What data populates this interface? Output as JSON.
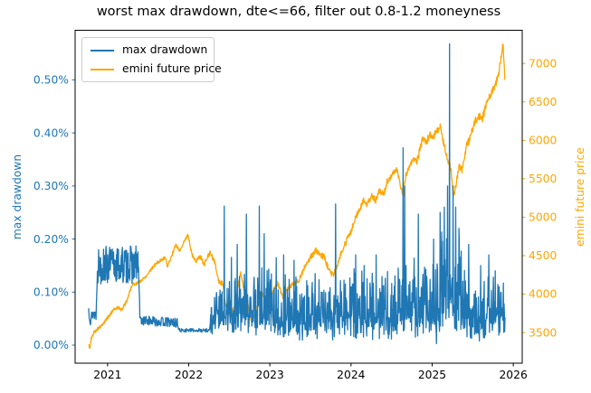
{
  "chart_data": {
    "type": "line",
    "title": "worst max drawdown, dte<=66, filter out 0.8-1.2 moneyness",
    "grid": false,
    "legend": {
      "position": "upper-left",
      "entries": [
        {
          "label": "max drawdown",
          "color": "#1f77b4"
        },
        {
          "label": "emini future price",
          "color": "#ffa500"
        }
      ]
    },
    "x_axis": {
      "lim": [
        2020.6,
        2026.11
      ],
      "tick_color": "#000000",
      "ticks": [
        {
          "v": 2021,
          "label": "2021"
        },
        {
          "v": 2022,
          "label": "2022"
        },
        {
          "v": 2023,
          "label": "2023"
        },
        {
          "v": 2024,
          "label": "2024"
        },
        {
          "v": 2025,
          "label": "2025"
        },
        {
          "v": 2026,
          "label": "2026"
        }
      ]
    },
    "y_left": {
      "label": "max drawdown",
      "color": "#1f77b4",
      "lim": [
        -0.034,
        0.5935
      ],
      "ticks": [
        {
          "v": 0.0,
          "label": "0.00%"
        },
        {
          "v": 0.1,
          "label": "0.10%"
        },
        {
          "v": 0.2,
          "label": "0.20%"
        },
        {
          "v": 0.3,
          "label": "0.30%"
        },
        {
          "v": 0.4,
          "label": "0.40%"
        },
        {
          "v": 0.5,
          "label": "0.50%"
        }
      ]
    },
    "y_right": {
      "label": "emini future price",
      "color": "#ffa500",
      "lim": [
        3101,
        7432
      ],
      "ticks": [
        {
          "v": 3500,
          "label": "3500"
        },
        {
          "v": 4000,
          "label": "4000"
        },
        {
          "v": 4500,
          "label": "4500"
        },
        {
          "v": 5000,
          "label": "5000"
        },
        {
          "v": 5500,
          "label": "5500"
        },
        {
          "v": 6000,
          "label": "6000"
        },
        {
          "v": 6500,
          "label": "6500"
        },
        {
          "v": 7000,
          "label": "7000"
        }
      ]
    },
    "sample_step": 0.004,
    "series": [
      {
        "name": "emini future price",
        "slug": "emini-future-price",
        "color": "#ffa500",
        "axis": "right",
        "seed": 5,
        "keypoints": [
          [
            2020.768,
            3340
          ],
          [
            2020.78,
            3290
          ],
          [
            2020.8,
            3420
          ],
          [
            2020.83,
            3500
          ],
          [
            2020.87,
            3540
          ],
          [
            2020.92,
            3580
          ],
          [
            2020.97,
            3650
          ],
          [
            2021.02,
            3720
          ],
          [
            2021.08,
            3800
          ],
          [
            2021.13,
            3830
          ],
          [
            2021.17,
            3790
          ],
          [
            2021.24,
            3920
          ],
          [
            2021.3,
            4120
          ],
          [
            2021.36,
            4140
          ],
          [
            2021.42,
            4180
          ],
          [
            2021.48,
            4240
          ],
          [
            2021.54,
            4330
          ],
          [
            2021.6,
            4400
          ],
          [
            2021.66,
            4440
          ],
          [
            2021.71,
            4480
          ],
          [
            2021.74,
            4360
          ],
          [
            2021.79,
            4500
          ],
          [
            2021.84,
            4640
          ],
          [
            2021.89,
            4560
          ],
          [
            2021.94,
            4680
          ],
          [
            2021.99,
            4770
          ],
          [
            2022.04,
            4520
          ],
          [
            2022.09,
            4420
          ],
          [
            2022.14,
            4500
          ],
          [
            2022.19,
            4380
          ],
          [
            2022.26,
            4540
          ],
          [
            2022.32,
            4420
          ],
          [
            2022.37,
            4160
          ],
          [
            2022.42,
            4140
          ],
          [
            2022.46,
            3840
          ],
          [
            2022.51,
            3720
          ],
          [
            2022.57,
            3860
          ],
          [
            2022.61,
            4120
          ],
          [
            2022.64,
            4280
          ],
          [
            2022.69,
            4010
          ],
          [
            2022.73,
            3870
          ],
          [
            2022.77,
            3620
          ],
          [
            2022.81,
            3720
          ],
          [
            2022.86,
            3880
          ],
          [
            2022.91,
            4020
          ],
          [
            2022.96,
            3860
          ],
          [
            2023.0,
            3890
          ],
          [
            2023.05,
            4080
          ],
          [
            2023.1,
            4140
          ],
          [
            2023.16,
            3950
          ],
          [
            2023.21,
            4060
          ],
          [
            2023.28,
            4130
          ],
          [
            2023.36,
            4180
          ],
          [
            2023.44,
            4380
          ],
          [
            2023.5,
            4470
          ],
          [
            2023.56,
            4570
          ],
          [
            2023.62,
            4510
          ],
          [
            2023.67,
            4480
          ],
          [
            2023.72,
            4330
          ],
          [
            2023.78,
            4240
          ],
          [
            2023.83,
            4380
          ],
          [
            2023.88,
            4550
          ],
          [
            2023.94,
            4680
          ],
          [
            2024.0,
            4820
          ],
          [
            2024.05,
            4970
          ],
          [
            2024.1,
            5090
          ],
          [
            2024.16,
            5240
          ],
          [
            2024.2,
            5170
          ],
          [
            2024.26,
            5290
          ],
          [
            2024.3,
            5210
          ],
          [
            2024.35,
            5350
          ],
          [
            2024.4,
            5290
          ],
          [
            2024.45,
            5470
          ],
          [
            2024.5,
            5550
          ],
          [
            2024.56,
            5630
          ],
          [
            2024.6,
            5470
          ],
          [
            2024.64,
            5270
          ],
          [
            2024.68,
            5570
          ],
          [
            2024.73,
            5670
          ],
          [
            2024.77,
            5770
          ],
          [
            2024.81,
            5710
          ],
          [
            2024.86,
            5940
          ],
          [
            2024.9,
            6040
          ],
          [
            2024.93,
            5970
          ],
          [
            2024.97,
            6080
          ],
          [
            2025.0,
            6010
          ],
          [
            2025.05,
            6110
          ],
          [
            2025.1,
            6170
          ],
          [
            2025.14,
            5970
          ],
          [
            2025.19,
            5740
          ],
          [
            2025.23,
            5640
          ],
          [
            2025.26,
            5250
          ],
          [
            2025.3,
            5470
          ],
          [
            2025.33,
            5670
          ],
          [
            2025.37,
            5610
          ],
          [
            2025.42,
            5910
          ],
          [
            2025.47,
            6040
          ],
          [
            2025.52,
            6230
          ],
          [
            2025.57,
            6310
          ],
          [
            2025.62,
            6290
          ],
          [
            2025.67,
            6470
          ],
          [
            2025.72,
            6590
          ],
          [
            2025.77,
            6690
          ],
          [
            2025.82,
            6870
          ],
          [
            2025.86,
            7160
          ],
          [
            2025.875,
            7240
          ],
          [
            2025.89,
            6920
          ],
          [
            2025.897,
            6790
          ]
        ],
        "noise": [
          {
            "from": 2020.76,
            "to": 2022.0,
            "sym": 20
          },
          {
            "from": 2022.0,
            "to": 2023.5,
            "sym": 30
          },
          {
            "from": 2023.5,
            "to": 2024.8,
            "sym": 40
          },
          {
            "from": 2024.8,
            "to": 2025.91,
            "sym": 50
          }
        ],
        "spikes": []
      },
      {
        "name": "max drawdown",
        "slug": "max-drawdown",
        "color": "#1f77b4",
        "axis": "left",
        "seed": 13,
        "keypoints": [
          [
            2020.766,
            0.068
          ],
          [
            2020.79,
            0.048
          ],
          [
            2020.82,
            0.06
          ],
          [
            2020.86,
            0.058
          ],
          [
            2020.875,
            0.15
          ],
          [
            2021.38,
            0.152
          ],
          [
            2021.4,
            0.047
          ],
          [
            2021.86,
            0.042
          ],
          [
            2021.88,
            0.028
          ],
          [
            2022.25,
            0.028
          ],
          [
            2022.33,
            0.05
          ],
          [
            2022.45,
            0.065
          ],
          [
            2023.05,
            0.06
          ],
          [
            2023.45,
            0.045
          ],
          [
            2023.82,
            0.055
          ],
          [
            2024.55,
            0.055
          ],
          [
            2024.62,
            0.06
          ],
          [
            2025.05,
            0.06
          ],
          [
            2025.17,
            0.09
          ],
          [
            2025.33,
            0.075
          ],
          [
            2025.5,
            0.05
          ],
          [
            2025.7,
            0.05
          ],
          [
            2025.897,
            0.065
          ]
        ],
        "noise": [
          {
            "from": 2020.76,
            "to": 2020.875,
            "sym": 0.012
          },
          {
            "from": 2020.875,
            "to": 2021.385,
            "sym": 0.036
          },
          {
            "from": 2021.385,
            "to": 2021.87,
            "sym": 0.009
          },
          {
            "from": 2021.87,
            "to": 2022.26,
            "sym": 0.0035
          },
          {
            "from": 2022.26,
            "to": 2022.46,
            "down": 0.03,
            "up": 0.06,
            "pow": 2
          },
          {
            "from": 2022.46,
            "to": 2023.06,
            "down": 0.045,
            "up": 0.105,
            "pow": 2.2
          },
          {
            "from": 2023.06,
            "to": 2023.82,
            "down": 0.045,
            "up": 0.09,
            "pow": 2.2
          },
          {
            "from": 2023.82,
            "to": 2024.58,
            "down": 0.045,
            "up": 0.1,
            "pow": 2.2
          },
          {
            "from": 2024.58,
            "to": 2025.05,
            "down": 0.05,
            "up": 0.115,
            "pow": 2.2
          },
          {
            "from": 2025.05,
            "to": 2025.36,
            "down": 0.06,
            "up": 0.16,
            "pow": 2
          },
          {
            "from": 2025.36,
            "to": 2025.91,
            "down": 0.045,
            "up": 0.09,
            "pow": 2.2
          }
        ],
        "spikes": [
          [
            2022.44,
            0.262
          ],
          [
            2022.6,
            0.19
          ],
          [
            2022.71,
            0.247
          ],
          [
            2022.87,
            0.262
          ],
          [
            2022.93,
            0.21
          ],
          [
            2023.08,
            0.165
          ],
          [
            2023.17,
            0.17
          ],
          [
            2023.3,
            0.16
          ],
          [
            2023.56,
            0.135
          ],
          [
            2023.81,
            0.266
          ],
          [
            2024.06,
            0.17
          ],
          [
            2024.16,
            0.15
          ],
          [
            2024.31,
            0.17
          ],
          [
            2024.64,
            0.372
          ],
          [
            2024.66,
            0.3
          ],
          [
            2024.83,
            0.247
          ],
          [
            2025.02,
            0.2
          ],
          [
            2025.1,
            0.25
          ],
          [
            2025.15,
            0.26
          ],
          [
            2025.19,
            0.3
          ],
          [
            2025.216,
            0.568
          ],
          [
            2025.26,
            0.3
          ],
          [
            2025.29,
            0.26
          ],
          [
            2025.33,
            0.22
          ],
          [
            2025.45,
            0.19
          ],
          [
            2025.6,
            0.15
          ],
          [
            2025.7,
            0.17
          ],
          [
            2025.78,
            0.14
          ]
        ]
      }
    ]
  }
}
